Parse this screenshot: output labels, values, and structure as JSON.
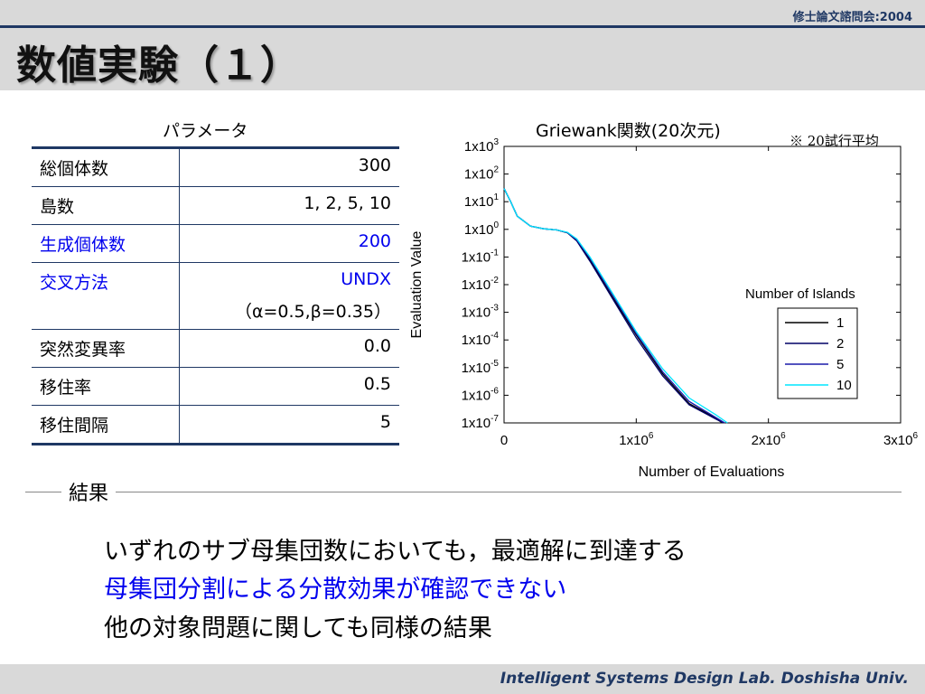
{
  "header": {
    "conference": "修士論文諮問会:2004",
    "title": "数値実験（１）"
  },
  "params": {
    "title": "パラメータ",
    "rows": [
      {
        "key": "総個体数",
        "value": "300",
        "highlight": false
      },
      {
        "key": "島数",
        "value": "1, 2, 5, 10",
        "highlight": false
      },
      {
        "key": "生成個体数",
        "value": "200",
        "highlight": true
      },
      {
        "key": "交叉方法",
        "value": "UNDX",
        "value2": "（α=0.5,β=0.35）",
        "highlight": true
      },
      {
        "key": "突然変異率",
        "value": "0.0",
        "highlight": false
      },
      {
        "key": "移住率",
        "value": "0.5",
        "highlight": false
      },
      {
        "key": "移住間隔",
        "value": "5",
        "highlight": false
      }
    ],
    "highlight_color": "#0000ee"
  },
  "chart": {
    "title": "Griewank関数(20次元)",
    "note": "※ 20試行平均"
  },
  "chart_data": {
    "type": "line",
    "xlabel": "Number of Evaluations",
    "ylabel": "Evaluation Value",
    "xlim": [
      0,
      3000000
    ],
    "ylim": [
      1e-07,
      1000
    ],
    "yscale": "log",
    "grid": false,
    "x_ticks": [
      {
        "v": 0,
        "base": "0",
        "exp": ""
      },
      {
        "v": 1000000,
        "base": "1x10",
        "exp": "6"
      },
      {
        "v": 2000000,
        "base": "2x10",
        "exp": "6"
      },
      {
        "v": 3000000,
        "base": "3x10",
        "exp": "6"
      }
    ],
    "y_ticks": [
      {
        "e": 3,
        "base": "1x10",
        "exp": "3"
      },
      {
        "e": 2,
        "base": "1x10",
        "exp": "2"
      },
      {
        "e": 1,
        "base": "1x10",
        "exp": "1"
      },
      {
        "e": 0,
        "base": "1x10",
        "exp": "0"
      },
      {
        "e": -1,
        "base": "1x10",
        "exp": "-1"
      },
      {
        "e": -2,
        "base": "1x10",
        "exp": "-2"
      },
      {
        "e": -3,
        "base": "1x10",
        "exp": "-3"
      },
      {
        "e": -4,
        "base": "1x10",
        "exp": "-4"
      },
      {
        "e": -5,
        "base": "1x10",
        "exp": "-5"
      },
      {
        "e": -6,
        "base": "1x10",
        "exp": "-6"
      },
      {
        "e": -7,
        "base": "1x10",
        "exp": "-7"
      }
    ],
    "legend_title": "Number of Islands",
    "legend_position": "right",
    "series": [
      {
        "name": "1",
        "color": "#000000",
        "x": [
          0,
          50000,
          100000,
          200000,
          300000,
          400000,
          480000,
          550000,
          650000,
          800000,
          1000000,
          1200000,
          1400000,
          1600000,
          1650000
        ],
        "y": [
          30,
          10,
          3,
          1.3,
          1.05,
          0.95,
          0.75,
          0.4,
          0.08,
          0.005,
          0.00015,
          6e-06,
          5e-07,
          1.5e-07,
          1e-07
        ]
      },
      {
        "name": "2",
        "color": "#000066",
        "x": [
          0,
          50000,
          100000,
          200000,
          300000,
          400000,
          480000,
          550000,
          650000,
          800000,
          1000000,
          1200000,
          1400000,
          1600000,
          1660000
        ],
        "y": [
          30,
          10,
          3,
          1.3,
          1.05,
          0.95,
          0.75,
          0.38,
          0.07,
          0.0045,
          0.00012,
          5e-06,
          4.5e-07,
          1.4e-07,
          1e-07
        ]
      },
      {
        "name": "5",
        "color": "#1a1aaa",
        "x": [
          0,
          50000,
          100000,
          200000,
          300000,
          400000,
          480000,
          550000,
          650000,
          800000,
          1000000,
          1200000,
          1400000,
          1600000,
          1670000
        ],
        "y": [
          30,
          10,
          3,
          1.3,
          1.05,
          0.95,
          0.76,
          0.42,
          0.09,
          0.006,
          0.00017,
          7e-06,
          6e-07,
          1.6e-07,
          1e-07
        ]
      },
      {
        "name": "10",
        "color": "#00e5ff",
        "x": [
          0,
          50000,
          100000,
          200000,
          300000,
          400000,
          480000,
          550000,
          650000,
          800000,
          1000000,
          1200000,
          1400000,
          1600000,
          1690000
        ],
        "y": [
          30,
          10,
          3,
          1.3,
          1.05,
          0.95,
          0.78,
          0.45,
          0.1,
          0.007,
          0.0002,
          9e-06,
          8e-07,
          2e-07,
          1e-07
        ]
      }
    ]
  },
  "results": {
    "label": "結果",
    "lines": [
      {
        "text": "いずれのサブ母集団数においても，最適解に到達する",
        "color": "#000000"
      },
      {
        "text": "母集団分割による分散効果が確認できない",
        "color": "#0000ee"
      },
      {
        "text": "他の対象問題に関しても同様の結果",
        "color": "#000000"
      }
    ]
  },
  "footer": {
    "text": "Intelligent Systems Design Lab. Doshisha Univ."
  }
}
